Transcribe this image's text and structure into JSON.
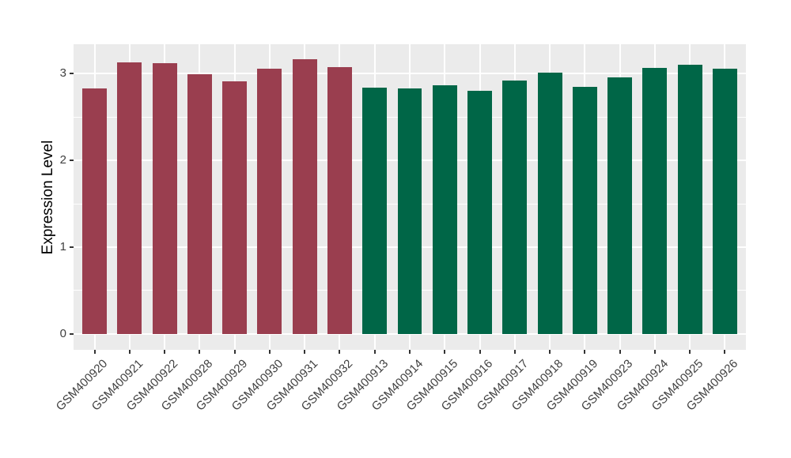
{
  "chart_data": {
    "type": "bar",
    "title": "",
    "xlabel": "",
    "ylabel": "Expression Level",
    "yticks": [
      0,
      1,
      2,
      3
    ],
    "yminor": [
      0.5,
      1.5,
      2.5
    ],
    "ylim": [
      -0.185,
      3.34
    ],
    "legend": "none",
    "panel_background": "#EBEBEB",
    "gridline_color": "#ffffff",
    "bar_colors": {
      "maroon": "#9A3E4F",
      "green": "#006647"
    },
    "bars": [
      {
        "label": "GSM400920",
        "value": 2.83,
        "color": "#9A3E4F"
      },
      {
        "label": "GSM400921",
        "value": 3.13,
        "color": "#9A3E4F"
      },
      {
        "label": "GSM400922",
        "value": 3.12,
        "color": "#9A3E4F"
      },
      {
        "label": "GSM400928",
        "value": 2.99,
        "color": "#9A3E4F"
      },
      {
        "label": "GSM400929",
        "value": 2.91,
        "color": "#9A3E4F"
      },
      {
        "label": "GSM400930",
        "value": 3.06,
        "color": "#9A3E4F"
      },
      {
        "label": "GSM400931",
        "value": 3.17,
        "color": "#9A3E4F"
      },
      {
        "label": "GSM400932",
        "value": 3.08,
        "color": "#9A3E4F"
      },
      {
        "label": "GSM400913",
        "value": 2.84,
        "color": "#006647"
      },
      {
        "label": "GSM400914",
        "value": 2.83,
        "color": "#006647"
      },
      {
        "label": "GSM400915",
        "value": 2.87,
        "color": "#006647"
      },
      {
        "label": "GSM400916",
        "value": 2.8,
        "color": "#006647"
      },
      {
        "label": "GSM400917",
        "value": 2.92,
        "color": "#006647"
      },
      {
        "label": "GSM400918",
        "value": 3.01,
        "color": "#006647"
      },
      {
        "label": "GSM400919",
        "value": 2.85,
        "color": "#006647"
      },
      {
        "label": "GSM400923",
        "value": 2.96,
        "color": "#006647"
      },
      {
        "label": "GSM400924",
        "value": 3.07,
        "color": "#006647"
      },
      {
        "label": "GSM400925",
        "value": 3.1,
        "color": "#006647"
      },
      {
        "label": "GSM400926",
        "value": 3.06,
        "color": "#006647"
      }
    ]
  }
}
